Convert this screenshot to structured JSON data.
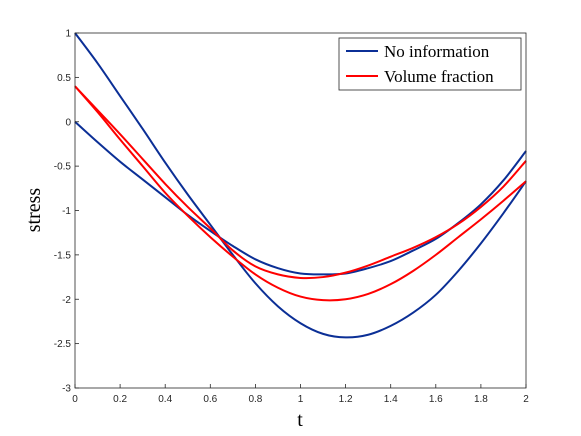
{
  "chart_data": {
    "type": "line",
    "title": "",
    "xlabel": "t",
    "ylabel": "stress",
    "xlim": [
      0,
      2
    ],
    "ylim": [
      -3,
      1
    ],
    "xticks": [
      "0",
      "0.2",
      "0.4",
      "0.6",
      "0.8",
      "1",
      "1.2",
      "1.4",
      "1.6",
      "1.8",
      "2"
    ],
    "yticks": [
      "1",
      "0.5",
      "0",
      "-0.5",
      "-1",
      "-1.5",
      "-2",
      "-2.5",
      "-3"
    ],
    "grid": false,
    "legend_position": "top-right",
    "legend": [
      {
        "label": "No information",
        "color": "#0b2f96"
      },
      {
        "label": "Volume fraction",
        "color": "#ff0000"
      }
    ],
    "series": [
      {
        "group": "No information",
        "color": "#0b2f96",
        "x": [
          0,
          0.1,
          0.2,
          0.3,
          0.4,
          0.5,
          0.6,
          0.7,
          0.8,
          0.9,
          1.0,
          1.1,
          1.2,
          1.3,
          1.4,
          1.5,
          1.6,
          1.7,
          1.8,
          1.9,
          2.0
        ],
        "y": [
          1.0,
          0.66,
          0.29,
          -0.08,
          -0.46,
          -0.82,
          -1.16,
          -1.5,
          -1.82,
          -2.08,
          -2.27,
          -2.39,
          -2.43,
          -2.4,
          -2.3,
          -2.15,
          -1.95,
          -1.68,
          -1.37,
          -1.03,
          -0.67
        ]
      },
      {
        "group": "No information",
        "color": "#0b2f96",
        "x": [
          0,
          0.1,
          0.2,
          0.3,
          0.4,
          0.5,
          0.6,
          0.7,
          0.8,
          0.9,
          1.0,
          1.1,
          1.2,
          1.3,
          1.4,
          1.5,
          1.6,
          1.7,
          1.8,
          1.9,
          2.0
        ],
        "y": [
          0.0,
          -0.23,
          -0.45,
          -0.65,
          -0.85,
          -1.05,
          -1.23,
          -1.4,
          -1.55,
          -1.65,
          -1.71,
          -1.72,
          -1.71,
          -1.65,
          -1.57,
          -1.45,
          -1.32,
          -1.14,
          -0.93,
          -0.66,
          -0.33
        ]
      },
      {
        "group": "Volume fraction",
        "color": "#ff0000",
        "x": [
          0,
          0.1,
          0.2,
          0.3,
          0.4,
          0.5,
          0.6,
          0.7,
          0.8,
          0.9,
          1.0,
          1.1,
          1.2,
          1.3,
          1.4,
          1.5,
          1.6,
          1.7,
          1.8,
          1.9,
          2.0
        ],
        "y": [
          0.4,
          0.13,
          -0.14,
          -0.42,
          -0.7,
          -0.96,
          -1.2,
          -1.45,
          -1.63,
          -1.72,
          -1.76,
          -1.75,
          -1.7,
          -1.62,
          -1.52,
          -1.42,
          -1.3,
          -1.15,
          -0.96,
          -0.73,
          -0.44
        ]
      },
      {
        "group": "Volume fraction",
        "color": "#ff0000",
        "x": [
          0,
          0.1,
          0.2,
          0.3,
          0.4,
          0.5,
          0.6,
          0.7,
          0.8,
          0.9,
          1.0,
          1.1,
          1.2,
          1.3,
          1.4,
          1.5,
          1.6,
          1.7,
          1.8,
          1.9,
          2.0
        ],
        "y": [
          0.4,
          0.11,
          -0.2,
          -0.5,
          -0.8,
          -1.06,
          -1.3,
          -1.52,
          -1.72,
          -1.87,
          -1.97,
          -2.01,
          -2.0,
          -1.94,
          -1.83,
          -1.68,
          -1.5,
          -1.3,
          -1.1,
          -0.89,
          -0.67
        ]
      }
    ]
  }
}
